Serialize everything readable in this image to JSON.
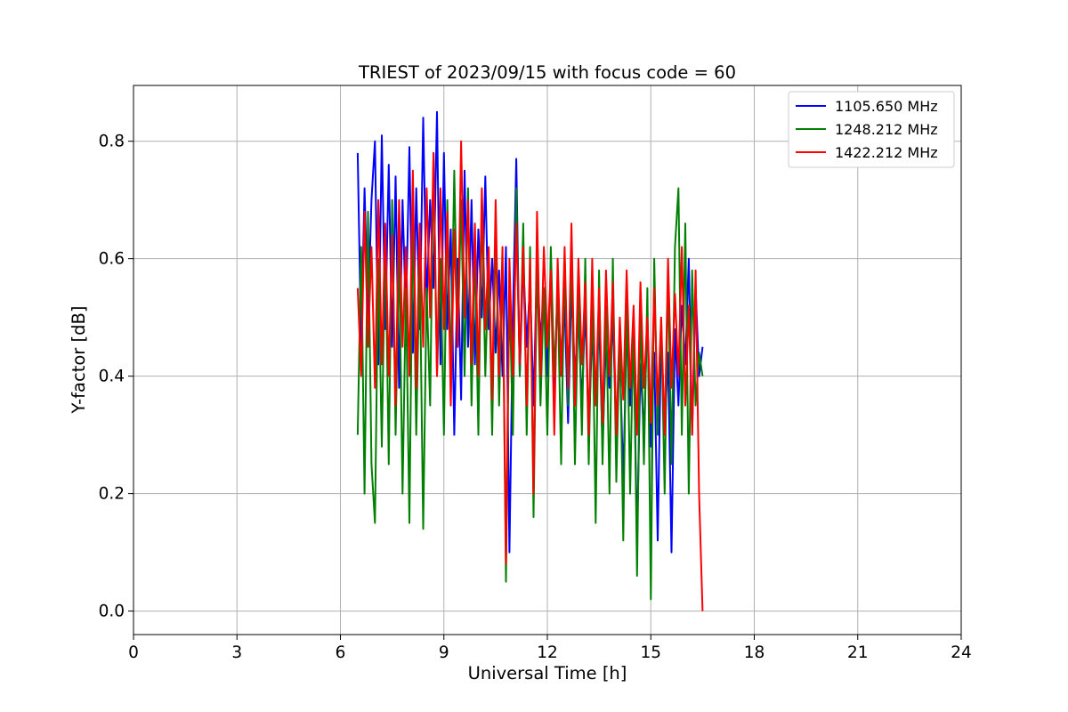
{
  "chart_data": {
    "type": "line",
    "title": "TRIEST of 2023/09/15 with focus code = 60",
    "xlabel": "Universal Time [h]",
    "ylabel": "Y-factor [dB]",
    "xlim": [
      0,
      24
    ],
    "ylim": [
      -0.04,
      0.895
    ],
    "x_ticks": [
      0,
      3,
      6,
      9,
      12,
      15,
      18,
      21,
      24
    ],
    "y_ticks": [
      0.0,
      0.2,
      0.4,
      0.6,
      0.8
    ],
    "x_tick_labels": [
      "0",
      "3",
      "6",
      "9",
      "12",
      "15",
      "18",
      "21",
      "24"
    ],
    "y_tick_labels": [
      "0.0",
      "0.2",
      "0.4",
      "0.6",
      "0.8"
    ],
    "grid": true,
    "legend_position": "top-right",
    "series": [
      {
        "name": "1105.650 MHz",
        "color": "#0000ff",
        "x": [
          6.5,
          6.6,
          6.7,
          6.8,
          6.9,
          7.0,
          7.1,
          7.2,
          7.3,
          7.4,
          7.5,
          7.6,
          7.7,
          7.8,
          7.9,
          8.0,
          8.1,
          8.2,
          8.3,
          8.4,
          8.5,
          8.6,
          8.7,
          8.8,
          8.9,
          9.0,
          9.1,
          9.2,
          9.3,
          9.4,
          9.5,
          9.6,
          9.7,
          9.8,
          9.9,
          10.0,
          10.1,
          10.2,
          10.3,
          10.4,
          10.5,
          10.6,
          10.7,
          10.8,
          10.9,
          11.0,
          11.1,
          11.2,
          11.3,
          11.4,
          11.5,
          11.6,
          11.7,
          11.8,
          11.9,
          12.0,
          12.1,
          12.2,
          12.3,
          12.4,
          12.5,
          12.6,
          12.7,
          12.8,
          12.9,
          13.0,
          13.1,
          13.2,
          13.3,
          13.4,
          13.5,
          13.6,
          13.7,
          13.8,
          13.9,
          14.0,
          14.1,
          14.2,
          14.3,
          14.4,
          14.5,
          14.6,
          14.7,
          14.8,
          14.9,
          15.0,
          15.1,
          15.2,
          15.3,
          15.4,
          15.5,
          15.6,
          15.7,
          15.8,
          15.9,
          16.0,
          16.1,
          16.2,
          16.3,
          16.4,
          16.5
        ],
        "y": [
          0.78,
          0.45,
          0.72,
          0.5,
          0.7,
          0.8,
          0.42,
          0.81,
          0.48,
          0.76,
          0.45,
          0.74,
          0.38,
          0.7,
          0.5,
          0.79,
          0.44,
          0.72,
          0.48,
          0.84,
          0.52,
          0.7,
          0.55,
          0.85,
          0.42,
          0.78,
          0.48,
          0.65,
          0.3,
          0.6,
          0.36,
          0.75,
          0.45,
          0.7,
          0.42,
          0.65,
          0.5,
          0.74,
          0.48,
          0.6,
          0.44,
          0.58,
          0.4,
          0.62,
          0.1,
          0.5,
          0.77,
          0.4,
          0.6,
          0.45,
          0.56,
          0.35,
          0.6,
          0.46,
          0.55,
          0.4,
          0.58,
          0.36,
          0.56,
          0.42,
          0.52,
          0.32,
          0.55,
          0.4,
          0.5,
          0.35,
          0.52,
          0.3,
          0.48,
          0.36,
          0.5,
          0.28,
          0.46,
          0.38,
          0.5,
          0.3,
          0.44,
          0.22,
          0.48,
          0.35,
          0.46,
          0.12,
          0.42,
          0.3,
          0.5,
          0.28,
          0.44,
          0.12,
          0.48,
          0.3,
          0.44,
          0.1,
          0.48,
          0.35,
          0.52,
          0.42,
          0.6,
          0.3,
          0.55,
          0.4,
          0.45
        ]
      },
      {
        "name": "1248.212 MHz",
        "color": "#008000",
        "x": [
          6.5,
          6.6,
          6.7,
          6.8,
          6.9,
          7.0,
          7.1,
          7.2,
          7.3,
          7.4,
          7.5,
          7.6,
          7.7,
          7.8,
          7.9,
          8.0,
          8.1,
          8.2,
          8.3,
          8.4,
          8.5,
          8.6,
          8.7,
          8.8,
          8.9,
          9.0,
          9.1,
          9.2,
          9.3,
          9.4,
          9.5,
          9.6,
          9.7,
          9.8,
          9.9,
          10.0,
          10.1,
          10.2,
          10.3,
          10.4,
          10.5,
          10.6,
          10.7,
          10.8,
          10.9,
          11.0,
          11.1,
          11.2,
          11.3,
          11.4,
          11.5,
          11.6,
          11.7,
          11.8,
          11.9,
          12.0,
          12.1,
          12.2,
          12.3,
          12.4,
          12.5,
          12.6,
          12.7,
          12.8,
          12.9,
          13.0,
          13.1,
          13.2,
          13.3,
          13.4,
          13.5,
          13.6,
          13.7,
          13.8,
          13.9,
          14.0,
          14.1,
          14.2,
          14.3,
          14.4,
          14.5,
          14.6,
          14.7,
          14.8,
          14.9,
          15.0,
          15.1,
          15.2,
          15.3,
          15.4,
          15.5,
          15.6,
          15.7,
          15.8,
          15.9,
          16.0,
          16.1,
          16.2,
          16.3,
          16.4,
          16.5
        ],
        "y": [
          0.3,
          0.62,
          0.2,
          0.68,
          0.25,
          0.15,
          0.6,
          0.28,
          0.65,
          0.25,
          0.7,
          0.3,
          0.62,
          0.2,
          0.55,
          0.15,
          0.68,
          0.3,
          0.6,
          0.14,
          0.55,
          0.35,
          0.78,
          0.4,
          0.6,
          0.3,
          0.7,
          0.4,
          0.75,
          0.45,
          0.7,
          0.4,
          0.72,
          0.35,
          0.62,
          0.3,
          0.7,
          0.4,
          0.6,
          0.3,
          0.66,
          0.35,
          0.6,
          0.05,
          0.55,
          0.3,
          0.72,
          0.4,
          0.66,
          0.3,
          0.62,
          0.16,
          0.6,
          0.35,
          0.55,
          0.3,
          0.62,
          0.4,
          0.55,
          0.25,
          0.6,
          0.35,
          0.62,
          0.25,
          0.55,
          0.3,
          0.6,
          0.25,
          0.55,
          0.15,
          0.58,
          0.25,
          0.52,
          0.2,
          0.6,
          0.22,
          0.48,
          0.12,
          0.55,
          0.2,
          0.5,
          0.06,
          0.52,
          0.25,
          0.55,
          0.02,
          0.6,
          0.3,
          0.5,
          0.2,
          0.58,
          0.25,
          0.62,
          0.72,
          0.3,
          0.66,
          0.2,
          0.58,
          0.35,
          0.44,
          0.4
        ]
      },
      {
        "name": "1422.212 MHz",
        "color": "#ff0000",
        "x": [
          6.5,
          6.6,
          6.7,
          6.8,
          6.9,
          7.0,
          7.1,
          7.2,
          7.3,
          7.4,
          7.5,
          7.6,
          7.7,
          7.8,
          7.9,
          8.0,
          8.1,
          8.2,
          8.3,
          8.4,
          8.5,
          8.6,
          8.7,
          8.8,
          8.9,
          9.0,
          9.1,
          9.2,
          9.3,
          9.4,
          9.5,
          9.6,
          9.7,
          9.8,
          9.9,
          10.0,
          10.1,
          10.2,
          10.3,
          10.4,
          10.5,
          10.6,
          10.7,
          10.8,
          10.9,
          11.0,
          11.1,
          11.2,
          11.3,
          11.4,
          11.5,
          11.6,
          11.7,
          11.8,
          11.9,
          12.0,
          12.1,
          12.2,
          12.3,
          12.4,
          12.5,
          12.6,
          12.7,
          12.8,
          12.9,
          13.0,
          13.1,
          13.2,
          13.3,
          13.4,
          13.5,
          13.6,
          13.7,
          13.8,
          13.9,
          14.0,
          14.1,
          14.2,
          14.3,
          14.4,
          14.5,
          14.6,
          14.7,
          14.8,
          14.9,
          15.0,
          15.1,
          15.2,
          15.3,
          15.4,
          15.5,
          15.6,
          15.7,
          15.8,
          15.9,
          16.0,
          16.1,
          16.2,
          16.3,
          16.4,
          16.5
        ],
        "y": [
          0.55,
          0.4,
          0.68,
          0.45,
          0.62,
          0.38,
          0.7,
          0.42,
          0.66,
          0.4,
          0.64,
          0.35,
          0.7,
          0.45,
          0.62,
          0.4,
          0.75,
          0.38,
          0.66,
          0.45,
          0.72,
          0.5,
          0.78,
          0.4,
          0.72,
          0.48,
          0.68,
          0.35,
          0.65,
          0.45,
          0.8,
          0.5,
          0.7,
          0.42,
          0.66,
          0.4,
          0.72,
          0.48,
          0.62,
          0.36,
          0.7,
          0.4,
          0.62,
          0.08,
          0.6,
          0.4,
          0.66,
          0.42,
          0.62,
          0.35,
          0.6,
          0.2,
          0.68,
          0.4,
          0.62,
          0.45,
          0.58,
          0.3,
          0.6,
          0.4,
          0.62,
          0.38,
          0.66,
          0.35,
          0.6,
          0.42,
          0.56,
          0.3,
          0.6,
          0.35,
          0.55,
          0.32,
          0.58,
          0.4,
          0.56,
          0.3,
          0.5,
          0.36,
          0.58,
          0.38,
          0.52,
          0.3,
          0.56,
          0.38,
          0.5,
          0.32,
          0.55,
          0.35,
          0.5,
          0.3,
          0.6,
          0.38,
          0.54,
          0.4,
          0.62,
          0.35,
          0.52,
          0.3,
          0.58,
          0.2,
          0.0
        ]
      }
    ]
  }
}
